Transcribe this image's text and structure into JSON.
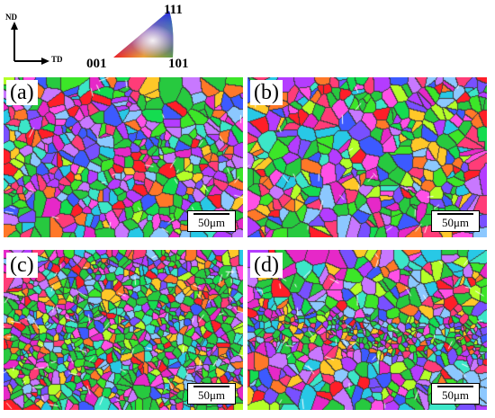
{
  "legend": {
    "nd_label": "ND",
    "td_label": "TD",
    "ipf_corners": {
      "top": "111",
      "left": "001",
      "right": "101"
    }
  },
  "panels": [
    {
      "label": "(a)",
      "scale_text": "50μm",
      "grain_size": "medium",
      "grain_count": 430,
      "seed": 11
    },
    {
      "label": "(b)",
      "scale_text": "50μm",
      "grain_size": "medium",
      "grain_count": 360,
      "seed": 23
    },
    {
      "label": "(c)",
      "scale_text": "50μm",
      "grain_size": "fine",
      "grain_count": 900,
      "seed": 37
    },
    {
      "label": "(d)",
      "scale_text": "50μm",
      "grain_size": "mixed",
      "grain_count": 620,
      "seed": 51
    }
  ],
  "colors": {
    "dominant_grain": "#27c93f",
    "grain_boundary": "#3a3a3a",
    "twin_boundary": "#ffffff",
    "ipf_001": "#ff0000",
    "ipf_101": "#00ff00",
    "ipf_111": "#0000ff"
  }
}
